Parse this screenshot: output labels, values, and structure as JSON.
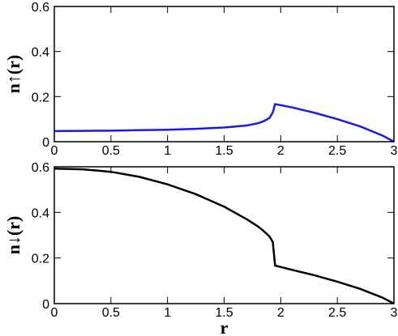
{
  "chart_data": [
    {
      "type": "line",
      "y_label": "n↑(r)",
      "x": [
        0,
        0.25,
        0.5,
        0.75,
        1,
        1.25,
        1.5,
        1.7,
        1.8,
        1.85,
        1.9,
        1.93,
        1.95,
        2.1,
        2.3,
        2.5,
        2.7,
        2.9,
        3
      ],
      "series": [
        {
          "color": "#1a1aee",
          "values": [
            0.047,
            0.048,
            0.049,
            0.051,
            0.053,
            0.057,
            0.063,
            0.072,
            0.082,
            0.091,
            0.105,
            0.13,
            0.167,
            0.152,
            0.128,
            0.1,
            0.068,
            0.027,
            0
          ]
        }
      ],
      "xlim": [
        0,
        3
      ],
      "xticks": [
        0,
        0.5,
        1,
        1.5,
        2,
        2.5,
        3
      ],
      "ylim": [
        0,
        0.6
      ],
      "yticks": [
        0,
        0.2,
        0.4,
        0.6
      ]
    },
    {
      "type": "line",
      "y_label": "n↓(r)",
      "x_label": "r",
      "x": [
        0,
        0.25,
        0.5,
        0.75,
        1,
        1.25,
        1.5,
        1.7,
        1.8,
        1.85,
        1.9,
        1.93,
        1.95,
        2.1,
        2.3,
        2.5,
        2.7,
        2.9,
        3
      ],
      "series": [
        {
          "color": "#000000",
          "values": [
            0.592,
            0.589,
            0.578,
            0.556,
            0.523,
            0.48,
            0.425,
            0.37,
            0.338,
            0.318,
            0.295,
            0.27,
            0.167,
            0.148,
            0.124,
            0.096,
            0.065,
            0.026,
            0
          ]
        }
      ],
      "xlim": [
        0,
        3
      ],
      "xticks": [
        0,
        0.5,
        1,
        1.5,
        2,
        2.5,
        3
      ],
      "ylim": [
        0,
        0.6
      ],
      "yticks": [
        0,
        0.2,
        0.4,
        0.6
      ]
    }
  ]
}
